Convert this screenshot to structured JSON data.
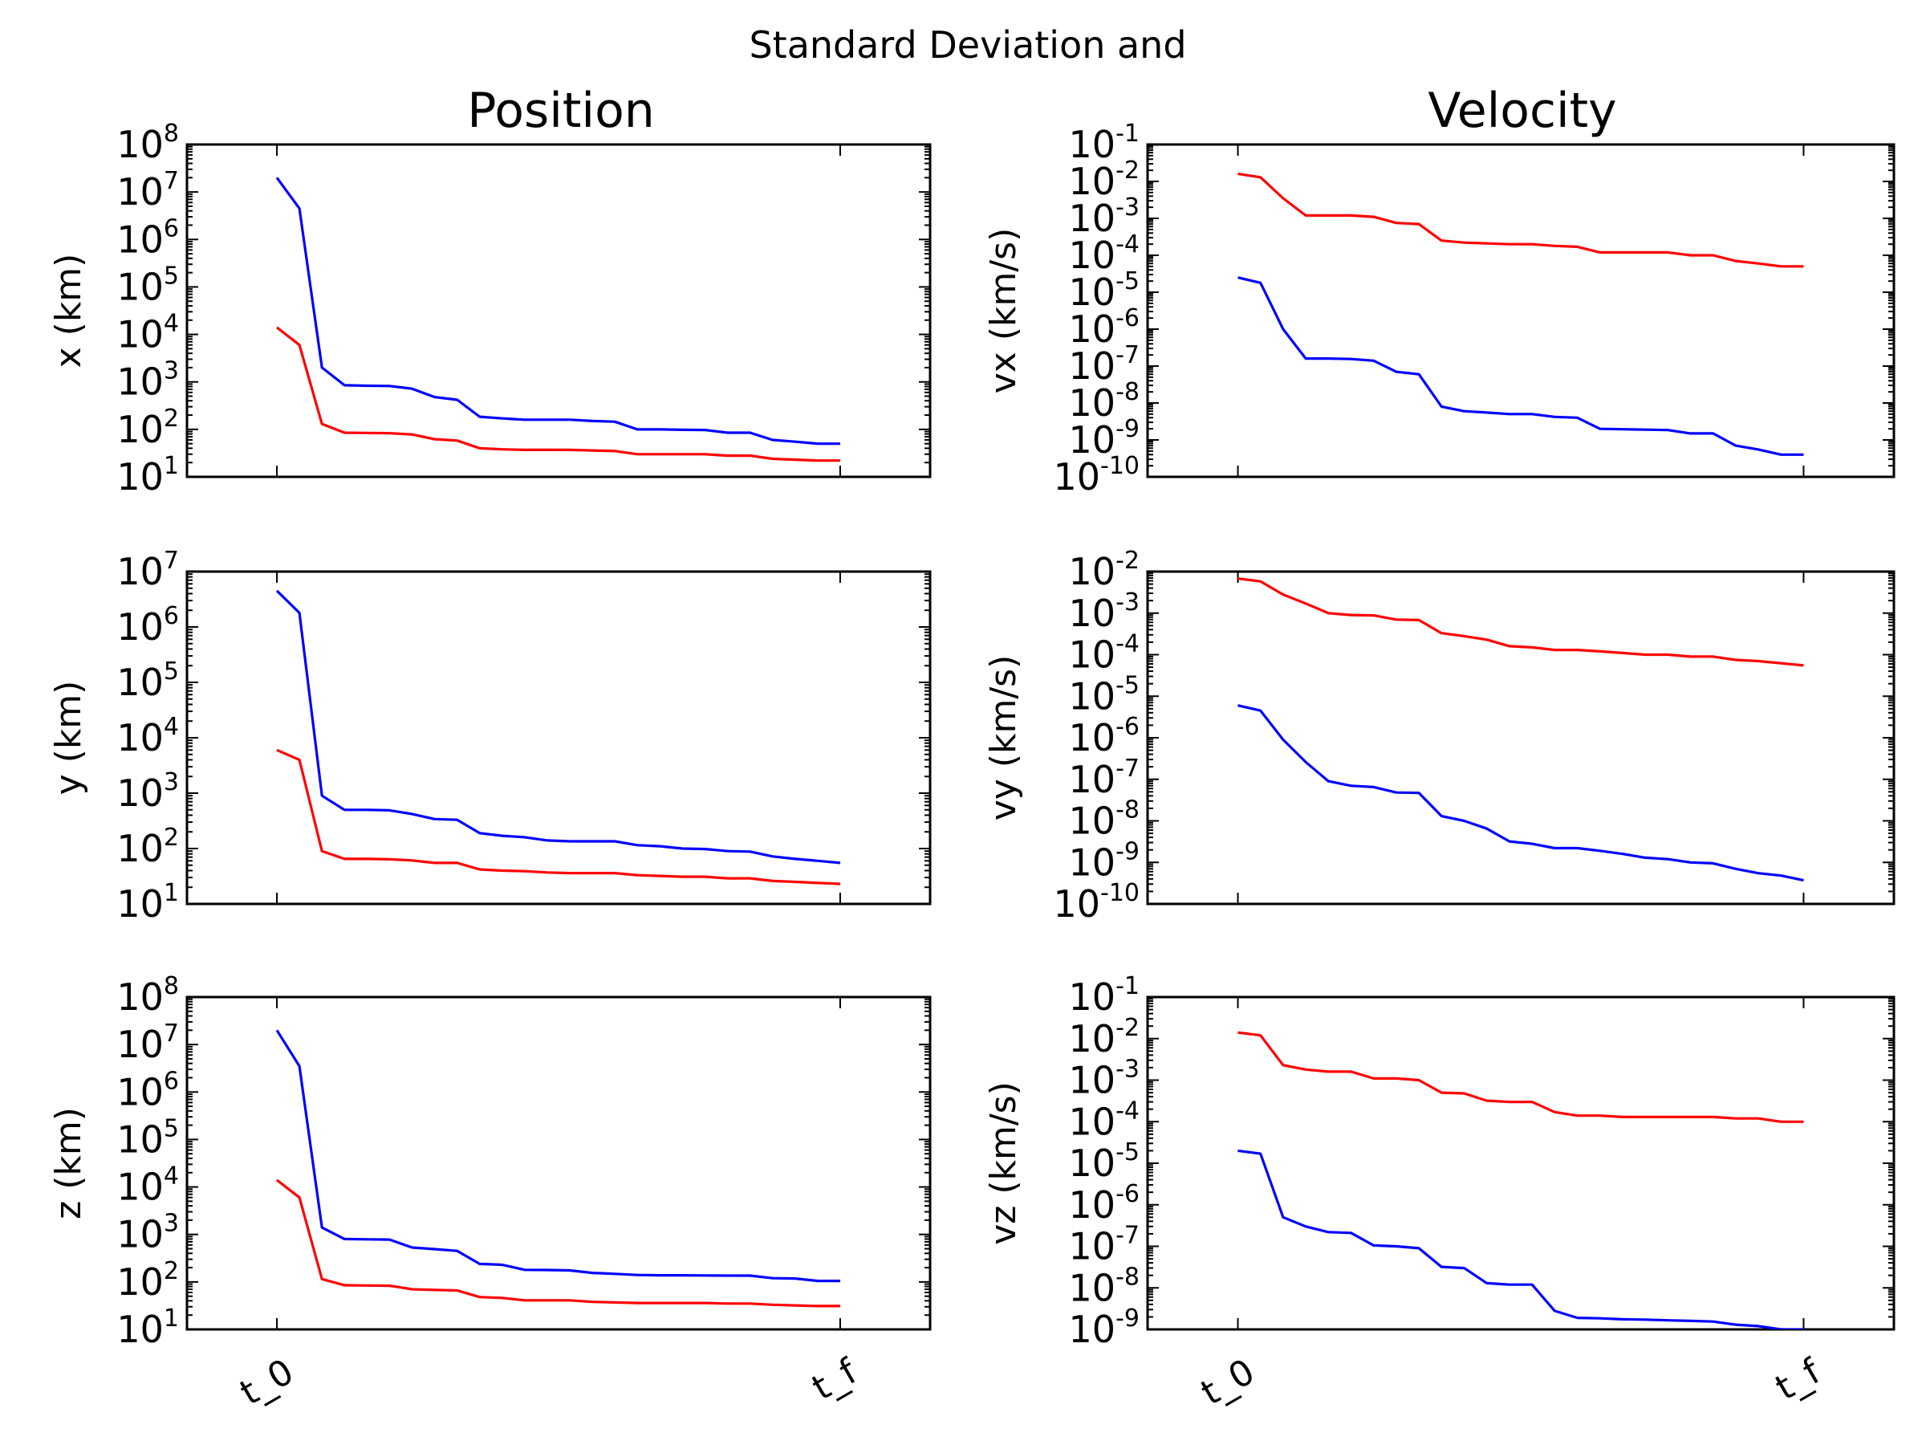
{
  "figure": {
    "suptitle": "Standard Deviation and",
    "column_titles": [
      "Position",
      "Velocity"
    ]
  },
  "colors": {
    "red_series": "#ff0000",
    "blue_series": "#0000ff"
  },
  "chart_data": [
    {
      "type": "line",
      "yscale": "log",
      "title": "Position",
      "ylabel": "x (km)",
      "ylim_exp": [
        1,
        8
      ],
      "y_ticks": [
        "10^1",
        "10^2",
        "10^3",
        "10^4",
        "10^5",
        "10^6",
        "10^7",
        "10^8"
      ],
      "x_tick_labels": [],
      "series": [
        {
          "color": "#0000ff",
          "values": [
            20000000.0,
            4500000.0,
            2000,
            850,
            830,
            820,
            720,
            480,
            420,
            185,
            170,
            160,
            160,
            160,
            150,
            145,
            100,
            100,
            98,
            97,
            85,
            85,
            60,
            55,
            50,
            50
          ]
        },
        {
          "color": "#ff0000",
          "values": [
            14000,
            6000,
            130,
            85,
            84,
            83,
            78,
            62,
            58,
            40,
            38,
            37,
            37,
            37,
            36,
            35,
            30,
            30,
            30,
            30,
            28,
            28,
            24,
            23,
            22,
            22
          ]
        }
      ]
    },
    {
      "type": "line",
      "yscale": "log",
      "title": "Velocity",
      "ylabel": "vx (km/s)",
      "ylim_exp": [
        -10,
        -1
      ],
      "y_ticks": [
        "10^-1",
        "10^-2",
        "10^-3",
        "10^-4",
        "10^-5",
        "10^-6",
        "10^-7",
        "10^-8",
        "10^-9",
        "10^-10"
      ],
      "x_tick_labels": [],
      "series": [
        {
          "color": "#ff0000",
          "values": [
            0.016,
            0.013,
            0.0035,
            0.0012,
            0.0012,
            0.0012,
            0.0011,
            0.00075,
            0.0007,
            0.00025,
            0.00022,
            0.00021,
            0.0002,
            0.0002,
            0.00018,
            0.00017,
            0.00012,
            0.00012,
            0.00012,
            0.00012,
            0.0001,
            0.0001,
            7e-05,
            6e-05,
            5e-05,
            5e-05
          ]
        },
        {
          "color": "#0000ff",
          "values": [
            2.5e-05,
            1.8e-05,
            1e-06,
            1.6e-07,
            1.6e-07,
            1.55e-07,
            1.4e-07,
            7e-08,
            6e-08,
            8e-09,
            6e-09,
            5.5e-09,
            5e-09,
            5e-09,
            4.2e-09,
            4e-09,
            2e-09,
            1.95e-09,
            1.9e-09,
            1.85e-09,
            1.5e-09,
            1.5e-09,
            7e-10,
            5.5e-10,
            4e-10,
            4e-10
          ]
        }
      ]
    },
    {
      "type": "line",
      "yscale": "log",
      "ylabel": "y (km)",
      "ylim_exp": [
        1,
        7
      ],
      "y_ticks": [
        "10^1",
        "10^2",
        "10^3",
        "10^4",
        "10^5",
        "10^6",
        "10^7"
      ],
      "x_tick_labels": [],
      "series": [
        {
          "color": "#0000ff",
          "values": [
            4500000.0,
            1800000.0,
            900,
            500,
            500,
            490,
            420,
            340,
            330,
            190,
            170,
            160,
            140,
            135,
            135,
            135,
            115,
            110,
            100,
            98,
            90,
            88,
            72,
            65,
            60,
            55
          ]
        },
        {
          "color": "#ff0000",
          "values": [
            6000,
            4000,
            90,
            65,
            65,
            64,
            61,
            55,
            55,
            42,
            40,
            39,
            37,
            36,
            36,
            36,
            33,
            32,
            31,
            31,
            29,
            29,
            26,
            25,
            24,
            23
          ]
        }
      ]
    },
    {
      "type": "line",
      "yscale": "log",
      "ylabel": "vy (km/s)",
      "ylim_exp": [
        -10,
        -2
      ],
      "y_ticks": [
        "10^-2",
        "10^-3",
        "10^-4",
        "10^-5",
        "10^-6",
        "10^-7",
        "10^-8",
        "10^-9",
        "10^-10"
      ],
      "x_tick_labels": [],
      "series": [
        {
          "color": "#ff0000",
          "values": [
            0.0068,
            0.0058,
            0.0028,
            0.0017,
            0.001,
            0.0009,
            0.00088,
            0.0007,
            0.00068,
            0.00033,
            0.00028,
            0.00023,
            0.00016,
            0.00015,
            0.00013,
            0.00013,
            0.00012,
            0.00011,
            0.0001,
            0.0001,
            9e-05,
            9e-05,
            7.5e-05,
            7e-05,
            6.2e-05,
            5.5e-05
          ]
        },
        {
          "color": "#0000ff",
          "values": [
            6e-06,
            4.5e-06,
            9e-07,
            2.6e-07,
            9e-08,
            7e-08,
            6.5e-08,
            4.8e-08,
            4.7e-08,
            1.3e-08,
            1e-08,
            6.5e-09,
            3.2e-09,
            2.8e-09,
            2.2e-09,
            2.2e-09,
            1.9e-09,
            1.6e-09,
            1.3e-09,
            1.2e-09,
            1e-09,
            9.5e-10,
            7e-10,
            5.5e-10,
            4.8e-10,
            3.7e-10
          ]
        }
      ]
    },
    {
      "type": "line",
      "yscale": "log",
      "ylabel": "z (km)",
      "ylim_exp": [
        1,
        8
      ],
      "y_ticks": [
        "10^1",
        "10^2",
        "10^3",
        "10^4",
        "10^5",
        "10^6",
        "10^7",
        "10^8"
      ],
      "x_tick_labels": [
        "t_0",
        "t_f"
      ],
      "series": [
        {
          "color": "#0000ff",
          "values": [
            20000000.0,
            3500000.0,
            1400,
            800,
            790,
            780,
            530,
            490,
            450,
            240,
            230,
            180,
            178,
            175,
            155,
            148,
            140,
            138,
            138,
            137,
            136,
            136,
            120,
            118,
            105,
            105
          ]
        },
        {
          "color": "#ff0000",
          "values": [
            14000,
            6000,
            115,
            85,
            84,
            83,
            70,
            68,
            66,
            48,
            46,
            41,
            41,
            41,
            38,
            37,
            36,
            36,
            36,
            36,
            35,
            35,
            33,
            32,
            31,
            31
          ]
        }
      ]
    },
    {
      "type": "line",
      "yscale": "log",
      "ylabel": "vz (km/s)",
      "ylim_exp": [
        -9,
        -1
      ],
      "y_ticks": [
        "10^-1",
        "10^-2",
        "10^-3",
        "10^-4",
        "10^-5",
        "10^-6",
        "10^-7",
        "10^-8",
        "10^-9"
      ],
      "x_tick_labels": [
        "t_0",
        "t_f"
      ],
      "series": [
        {
          "color": "#ff0000",
          "values": [
            0.014,
            0.012,
            0.0023,
            0.0018,
            0.0016,
            0.0016,
            0.0011,
            0.0011,
            0.001,
            0.0005,
            0.00048,
            0.00032,
            0.0003,
            0.0003,
            0.00017,
            0.00014,
            0.00014,
            0.00013,
            0.00013,
            0.00013,
            0.00013,
            0.00013,
            0.00012,
            0.00012,
            0.0001,
            0.0001
          ]
        },
        {
          "color": "#0000ff",
          "values": [
            2e-05,
            1.7e-05,
            5e-07,
            3e-07,
            2.2e-07,
            2.1e-07,
            1.05e-07,
            1e-07,
            9e-08,
            3.2e-08,
            3e-08,
            1.3e-08,
            1.2e-08,
            1.2e-08,
            2.8e-09,
            1.9e-09,
            1.85e-09,
            1.75e-09,
            1.72e-09,
            1.65e-09,
            1.6e-09,
            1.55e-09,
            1.3e-09,
            1.2e-09,
            1e-09,
            1e-09
          ]
        }
      ]
    }
  ]
}
